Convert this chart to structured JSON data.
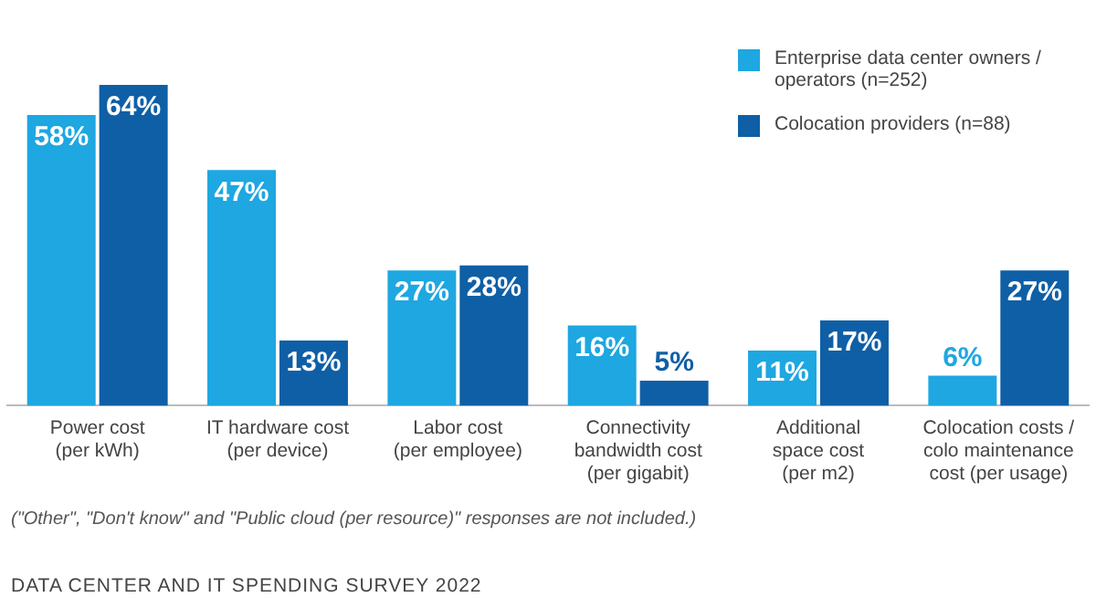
{
  "chart_data": {
    "type": "bar",
    "categories": [
      "Power cost\n(per kWh)",
      "IT hardware cost\n(per device)",
      "Labor cost\n(per employee)",
      "Connectivity\nbandwidth cost\n(per gigabit)",
      "Additional\nspace cost\n(per m2)",
      "Colocation costs /\ncolo maintenance\ncost (per usage)"
    ],
    "series": [
      {
        "name": "Enterprise data center owners / operators (n=252)",
        "color": "#1ea7e1",
        "values": [
          58,
          47,
          27,
          16,
          11,
          6
        ],
        "value_labels": [
          "58%",
          "47%",
          "27%",
          "16%",
          "11%",
          "6%"
        ]
      },
      {
        "name": "Colocation providers (n=88)",
        "color": "#0f5fa6",
        "values": [
          64,
          13,
          28,
          5,
          17,
          27
        ],
        "value_labels": [
          "64%",
          "13%",
          "28%",
          "5%",
          "17%",
          "27%"
        ]
      }
    ],
    "legend": "top right",
    "grid": false,
    "annotations": [
      "(\"Other\", \"Don't know\" and \"Public cloud (per resource)\" responses are not included.)",
      "DATA CENTER AND IT SPENDING SURVEY 2022"
    ]
  }
}
